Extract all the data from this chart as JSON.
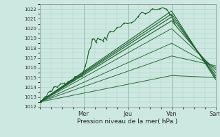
{
  "title": "Pression niveau de la mer( hPa )",
  "ylim": [
    1012,
    1022.5
  ],
  "yticks": [
    1012,
    1013,
    1014,
    1015,
    1016,
    1017,
    1018,
    1019,
    1020,
    1021,
    1022
  ],
  "xlim": [
    0,
    1.0
  ],
  "day_labels": [
    "Mer",
    "Jeu",
    "Ven",
    "Sam"
  ],
  "day_positions": [
    0.25,
    0.5,
    0.75,
    1.0
  ],
  "bg_color": "#cce8e0",
  "grid_color": "#aacfc5",
  "line_color_dark": "#1a5c2a",
  "n_points": 200,
  "smooth_lines": [
    {
      "x0": 0.0,
      "y0": 1012.5,
      "x1": 0.75,
      "y1": 1021.8,
      "x2": 1.0,
      "y2": 1014.8
    },
    {
      "x0": 0.0,
      "y0": 1012.5,
      "x1": 0.75,
      "y1": 1021.5,
      "x2": 1.0,
      "y2": 1015.0
    },
    {
      "x0": 0.0,
      "y0": 1012.5,
      "x1": 0.75,
      "y1": 1021.2,
      "x2": 1.0,
      "y2": 1015.2
    },
    {
      "x0": 0.0,
      "y0": 1012.5,
      "x1": 0.75,
      "y1": 1020.8,
      "x2": 1.0,
      "y2": 1015.5
    },
    {
      "x0": 0.0,
      "y0": 1012.5,
      "x1": 0.75,
      "y1": 1020.0,
      "x2": 1.0,
      "y2": 1015.8
    },
    {
      "x0": 0.0,
      "y0": 1012.5,
      "x1": 0.75,
      "y1": 1018.5,
      "x2": 1.0,
      "y2": 1016.0
    },
    {
      "x0": 0.0,
      "y0": 1012.5,
      "x1": 0.75,
      "y1": 1017.2,
      "x2": 1.0,
      "y2": 1016.2
    },
    {
      "x0": 0.0,
      "y0": 1012.5,
      "x1": 0.75,
      "y1": 1015.2,
      "x2": 1.0,
      "y2": 1015.0
    }
  ],
  "observed_segments": [
    [
      0.0,
      1012.3
    ],
    [
      0.01,
      1012.5
    ],
    [
      0.02,
      1012.8
    ],
    [
      0.03,
      1013.0
    ],
    [
      0.04,
      1013.2
    ],
    [
      0.05,
      1013.5
    ],
    [
      0.06,
      1013.6
    ],
    [
      0.07,
      1013.8
    ],
    [
      0.08,
      1013.9
    ],
    [
      0.09,
      1014.0
    ],
    [
      0.1,
      1014.1
    ],
    [
      0.11,
      1014.2
    ],
    [
      0.12,
      1014.3
    ],
    [
      0.13,
      1014.4
    ],
    [
      0.14,
      1014.45
    ],
    [
      0.15,
      1014.5
    ],
    [
      0.16,
      1014.5
    ],
    [
      0.17,
      1014.6
    ],
    [
      0.18,
      1014.7
    ],
    [
      0.19,
      1014.8
    ],
    [
      0.2,
      1014.9
    ],
    [
      0.22,
      1015.0
    ],
    [
      0.24,
      1015.2
    ],
    [
      0.25,
      1015.4
    ],
    [
      0.26,
      1016.2
    ],
    [
      0.27,
      1017.0
    ],
    [
      0.28,
      1017.8
    ],
    [
      0.29,
      1018.3
    ],
    [
      0.3,
      1018.8
    ],
    [
      0.31,
      1019.0
    ],
    [
      0.32,
      1018.7
    ],
    [
      0.33,
      1018.9
    ],
    [
      0.34,
      1019.1
    ],
    [
      0.35,
      1018.8
    ],
    [
      0.36,
      1019.0
    ],
    [
      0.37,
      1019.2
    ],
    [
      0.38,
      1019.0
    ],
    [
      0.39,
      1019.3
    ],
    [
      0.4,
      1019.5
    ],
    [
      0.42,
      1019.7
    ],
    [
      0.44,
      1020.0
    ],
    [
      0.46,
      1020.2
    ],
    [
      0.48,
      1020.5
    ],
    [
      0.5,
      1020.6
    ],
    [
      0.52,
      1020.8
    ],
    [
      0.54,
      1021.0
    ],
    [
      0.56,
      1021.2
    ],
    [
      0.58,
      1021.4
    ],
    [
      0.6,
      1021.5
    ],
    [
      0.62,
      1021.7
    ],
    [
      0.64,
      1021.8
    ],
    [
      0.66,
      1021.9
    ],
    [
      0.68,
      1022.0
    ],
    [
      0.7,
      1022.1
    ],
    [
      0.72,
      1022.0
    ],
    [
      0.73,
      1021.8
    ],
    [
      0.74,
      1021.6
    ],
    [
      0.75,
      1021.3
    ],
    [
      0.76,
      1020.8
    ],
    [
      0.77,
      1020.3
    ]
  ]
}
